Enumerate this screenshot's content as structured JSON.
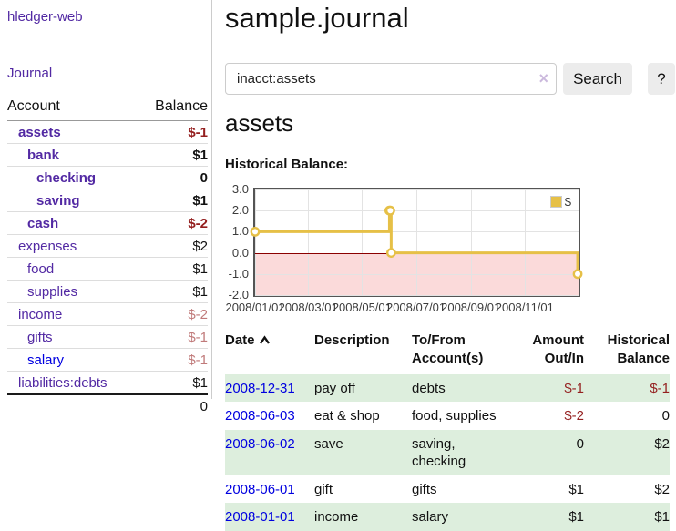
{
  "sidebar": {
    "brand": "hledger-web",
    "nav_journal": "Journal",
    "account_header": "Account",
    "balance_header": "Balance",
    "rows": [
      {
        "name": "assets",
        "balance": "$-1",
        "level": 1,
        "bold": true,
        "balance_style": "neg",
        "link_style": "purple"
      },
      {
        "name": "bank",
        "balance": "$1",
        "level": 2,
        "bold": true,
        "balance_style": "pos",
        "link_style": "purple"
      },
      {
        "name": "checking",
        "balance": "0",
        "level": 3,
        "bold": true,
        "balance_style": "pos",
        "link_style": "purple"
      },
      {
        "name": "saving",
        "balance": "$1",
        "level": 3,
        "bold": true,
        "balance_style": "pos",
        "link_style": "purple"
      },
      {
        "name": "cash",
        "balance": "$-2",
        "level": 2,
        "bold": true,
        "balance_style": "neg",
        "link_style": "purple"
      },
      {
        "name": "expenses",
        "balance": "$2",
        "level": 1,
        "bold": false,
        "balance_style": "pos",
        "link_style": "purple"
      },
      {
        "name": "food",
        "balance": "$1",
        "level": 2,
        "bold": false,
        "balance_style": "pos",
        "link_style": "purple"
      },
      {
        "name": "supplies",
        "balance": "$1",
        "level": 2,
        "bold": false,
        "balance_style": "pos",
        "link_style": "purple"
      },
      {
        "name": "income",
        "balance": "$-2",
        "level": 1,
        "bold": false,
        "balance_style": "negsoft",
        "link_style": "purple"
      },
      {
        "name": "gifts",
        "balance": "$-1",
        "level": 2,
        "bold": false,
        "balance_style": "negsoft",
        "link_style": "purple"
      },
      {
        "name": "salary",
        "balance": "$-1",
        "level": 2,
        "bold": false,
        "balance_style": "negsoft",
        "link_style": "blue"
      },
      {
        "name": "liabilities:debts",
        "balance": "$1",
        "level": 1,
        "bold": false,
        "balance_style": "pos",
        "link_style": "purple"
      }
    ],
    "total": "0"
  },
  "main": {
    "title": "sample.journal",
    "search_value": "inacct:assets",
    "clear_label": "×",
    "search_button": "Search",
    "help_button": "?",
    "account_heading": "assets",
    "chart_title": "Historical Balance:"
  },
  "chart_data": {
    "type": "line",
    "step": true,
    "title": "Historical Balance",
    "grid": true,
    "legend_position": "top-right",
    "x_range": [
      "2008-01-01",
      "2009-01-01"
    ],
    "y_range": [
      -2,
      3
    ],
    "x_ticks": [
      {
        "date": "2008-01-01",
        "label": "2008/01/01"
      },
      {
        "date": "2008-03-01",
        "label": "2008/03/01"
      },
      {
        "date": "2008-05-01",
        "label": "2008/05/01"
      },
      {
        "date": "2008-07-01",
        "label": "2008/07/01"
      },
      {
        "date": "2008-09-01",
        "label": "2008/09/01"
      },
      {
        "date": "2008-11-01",
        "label": "2008/11/01"
      }
    ],
    "y_ticks": [
      {
        "value": 3,
        "label": "3.0"
      },
      {
        "value": 2,
        "label": "2.0"
      },
      {
        "value": 1,
        "label": "1.0"
      },
      {
        "value": 0,
        "label": "0.0"
      },
      {
        "value": -1,
        "label": "-1.0"
      },
      {
        "value": -2,
        "label": "-2.0"
      }
    ],
    "series": [
      {
        "name": "$",
        "color": "#e6c047",
        "points": [
          {
            "date": "2008-01-01",
            "value": 1
          },
          {
            "date": "2008-06-01",
            "value": 2
          },
          {
            "date": "2008-06-02",
            "value": 2
          },
          {
            "date": "2008-06-03",
            "value": 0
          },
          {
            "date": "2008-12-31",
            "value": -1
          }
        ]
      }
    ],
    "negative_region_fill": "#fbdada",
    "zero_line_color": "#8b0000"
  },
  "register": {
    "headers": {
      "date": "Date",
      "description": "Description",
      "accounts": "To/From Account(s)",
      "amount": "Amount Out/In",
      "balance": "Historical Balance"
    },
    "rows": [
      {
        "date": "2008-12-31",
        "description": "pay off",
        "accounts": "debts",
        "amount": "$-1",
        "balance": "$-1",
        "amount_negative": true,
        "balance_negative": true
      },
      {
        "date": "2008-06-03",
        "description": "eat & shop",
        "accounts": "food, supplies",
        "amount": "$-2",
        "balance": "0",
        "amount_negative": true,
        "balance_negative": false
      },
      {
        "date": "2008-06-02",
        "description": "save",
        "accounts": "saving, checking",
        "amount": "0",
        "balance": "$2",
        "amount_negative": false,
        "balance_negative": false
      },
      {
        "date": "2008-06-01",
        "description": "gift",
        "accounts": "gifts",
        "amount": "$1",
        "balance": "$2",
        "amount_negative": false,
        "balance_negative": false
      },
      {
        "date": "2008-01-01",
        "description": "income",
        "accounts": "salary",
        "amount": "$1",
        "balance": "$1",
        "amount_negative": false,
        "balance_negative": false
      }
    ]
  }
}
